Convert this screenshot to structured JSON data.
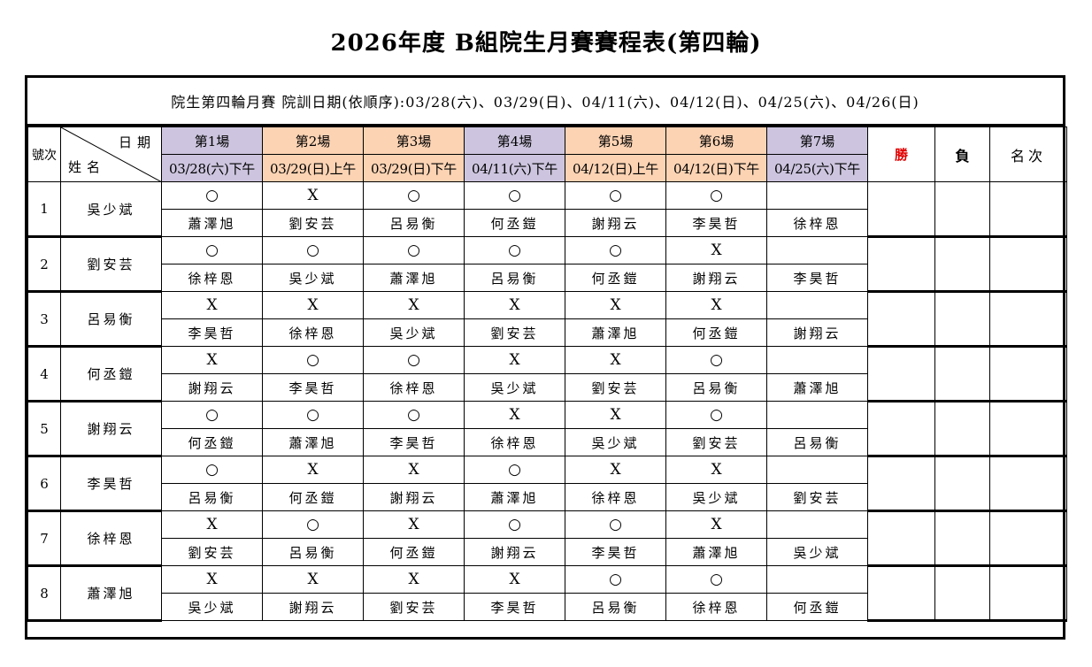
{
  "title": "2026年度 B組院生月賽賽程表(第四輪)",
  "note": "院生第四輪月賽 院訓日期(依順序):03/28(六)、03/29(日)、04/11(六)、04/12(日)、04/25(六)、04/26(日)",
  "header": {
    "no_label": "號次",
    "date_label": "日期",
    "name_label": "姓名",
    "win_label": "勝",
    "loss_label": "負",
    "rank_label": "名次",
    "rounds": [
      {
        "label": "第1場",
        "date": "03/28(六)下午",
        "color": "#cdc5df"
      },
      {
        "label": "第2場",
        "date": "03/29(日)上午",
        "color": "#fcd3b3"
      },
      {
        "label": "第3場",
        "date": "03/29(日)下午",
        "color": "#fcd3b3"
      },
      {
        "label": "第4場",
        "date": "04/11(六)下午",
        "color": "#cdc5df"
      },
      {
        "label": "第5場",
        "date": "04/12(日)上午",
        "color": "#fcd3b3"
      },
      {
        "label": "第6場",
        "date": "04/12(日)下午",
        "color": "#fcd3b3"
      },
      {
        "label": "第7場",
        "date": "04/25(六)下午",
        "color": "#cdc5df"
      }
    ]
  },
  "players": [
    {
      "no": "1",
      "name": "吳少斌",
      "results": [
        "○",
        "X",
        "○",
        "○",
        "○",
        "○",
        ""
      ],
      "opponents": [
        "蕭澤旭",
        "劉安芸",
        "呂易衡",
        "何丞鎧",
        "謝翔云",
        "李昊哲",
        "徐梓恩"
      ]
    },
    {
      "no": "2",
      "name": "劉安芸",
      "results": [
        "○",
        "○",
        "○",
        "○",
        "○",
        "X",
        ""
      ],
      "opponents": [
        "徐梓恩",
        "吳少斌",
        "蕭澤旭",
        "呂易衡",
        "何丞鎧",
        "謝翔云",
        "李昊哲"
      ]
    },
    {
      "no": "3",
      "name": "呂易衡",
      "results": [
        "X",
        "X",
        "X",
        "X",
        "X",
        "X",
        ""
      ],
      "opponents": [
        "李昊哲",
        "徐梓恩",
        "吳少斌",
        "劉安芸",
        "蕭澤旭",
        "何丞鎧",
        "謝翔云"
      ]
    },
    {
      "no": "4",
      "name": "何丞鎧",
      "results": [
        "X",
        "○",
        "○",
        "X",
        "X",
        "○",
        ""
      ],
      "opponents": [
        "謝翔云",
        "李昊哲",
        "徐梓恩",
        "吳少斌",
        "劉安芸",
        "呂易衡",
        "蕭澤旭"
      ]
    },
    {
      "no": "5",
      "name": "謝翔云",
      "results": [
        "○",
        "○",
        "○",
        "X",
        "X",
        "○",
        ""
      ],
      "opponents": [
        "何丞鎧",
        "蕭澤旭",
        "李昊哲",
        "徐梓恩",
        "吳少斌",
        "劉安芸",
        "呂易衡"
      ]
    },
    {
      "no": "6",
      "name": "李昊哲",
      "results": [
        "○",
        "X",
        "X",
        "○",
        "X",
        "X",
        ""
      ],
      "opponents": [
        "呂易衡",
        "何丞鎧",
        "謝翔云",
        "蕭澤旭",
        "徐梓恩",
        "吳少斌",
        "劉安芸"
      ]
    },
    {
      "no": "7",
      "name": "徐梓恩",
      "results": [
        "X",
        "○",
        "X",
        "○",
        "○",
        "X",
        ""
      ],
      "opponents": [
        "劉安芸",
        "呂易衡",
        "何丞鎧",
        "謝翔云",
        "李昊哲",
        "蕭澤旭",
        "吳少斌"
      ]
    },
    {
      "no": "8",
      "name": "蕭澤旭",
      "results": [
        "X",
        "X",
        "X",
        "X",
        "○",
        "○",
        ""
      ],
      "opponents": [
        "吳少斌",
        "謝翔云",
        "劉安芸",
        "李昊哲",
        "呂易衡",
        "徐梓恩",
        "何丞鎧"
      ]
    }
  ],
  "colors": {
    "win_label": "#e00000",
    "purple": "#cdc5df",
    "peach": "#fcd3b3"
  }
}
